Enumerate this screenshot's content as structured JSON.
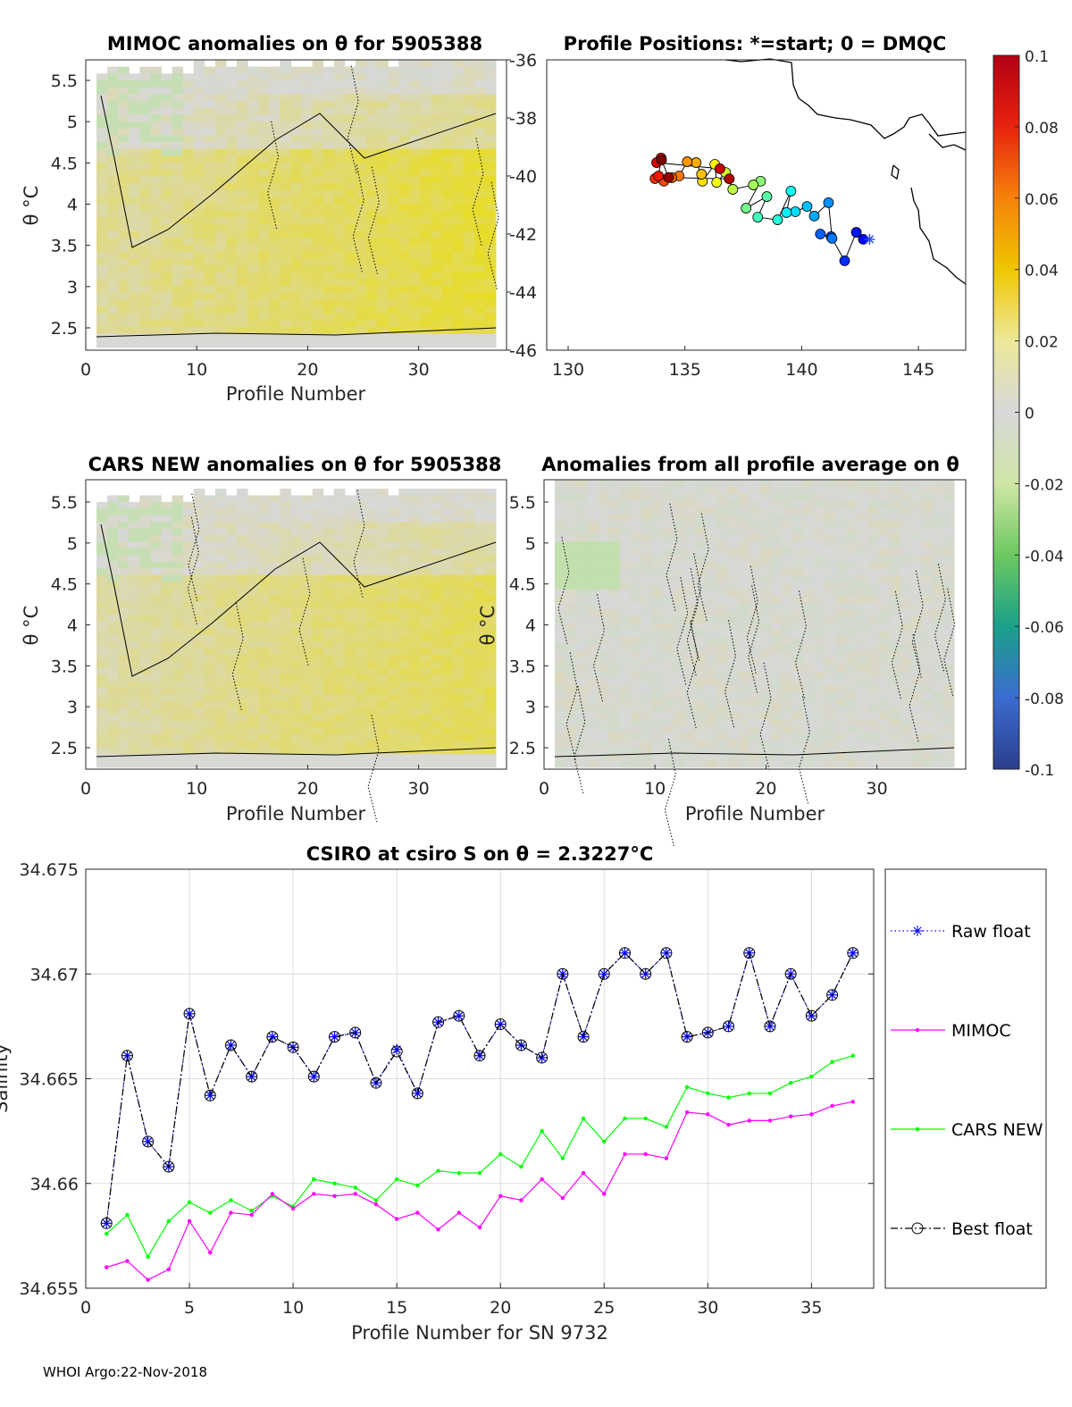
{
  "footer": "WHOI Argo:22-Nov-2018",
  "panels": {
    "mimoc": {
      "title": "MIMOC anomalies on θ  for 5905388",
      "xlabel": "Profile Number",
      "ylabel": "θ °C",
      "xticks": [
        "0",
        "10",
        "20",
        "30"
      ],
      "yticks": [
        "5.5",
        "5",
        "4.5",
        "4",
        "3.5",
        "3",
        "2.5"
      ]
    },
    "map": {
      "title": "Profile Positions: *=start; 0 = DMQC",
      "xticks": [
        "130",
        "135",
        "140",
        "145"
      ],
      "yticks": [
        "-36",
        "-38",
        "-40",
        "-42",
        "-44",
        "-46"
      ]
    },
    "cars": {
      "title": "CARS NEW anomalies on θ for 5905388",
      "xlabel": "Profile Number",
      "ylabel": "θ °C",
      "xticks": [
        "0",
        "10",
        "20",
        "30"
      ],
      "yticks": [
        "5.5",
        "5",
        "4.5",
        "4",
        "3.5",
        "3",
        "2.5"
      ]
    },
    "avg": {
      "title": "Anomalies from all profile average on θ",
      "xlabel": "Profile Number",
      "ylabel": "θ °C",
      "xticks": [
        "0",
        "10",
        "20",
        "30"
      ],
      "yticks": [
        "5.5",
        "5",
        "4.5",
        "4",
        "3.5",
        "3",
        "2.5"
      ]
    },
    "colorbar": {
      "ticks": [
        "0.1",
        "0.08",
        "0.06",
        "0.04",
        "0.02",
        "0",
        "-0.02",
        "-0.04",
        "-0.06",
        "-0.08",
        "-0.1"
      ]
    }
  },
  "chart_data": [
    {
      "type": "scatter",
      "title": "Profile Positions: *=start; 0 = DMQC",
      "xlim": [
        128.5,
        146.8
      ],
      "ylim": [
        -46,
        -36
      ],
      "lon": [
        142.64,
        142.34,
        141.84,
        141.26,
        140.8,
        141.3,
        141.15,
        140.54,
        140.23,
        139.73,
        139.35,
        139.54,
        138.97,
        138.12,
        138.51,
        137.62,
        138.24,
        137.93,
        137.05,
        136.74,
        136.36,
        136.28,
        135.75,
        135.71,
        135.48,
        135.1,
        134.75,
        134.44,
        134.1,
        133.72,
        133.87,
        133.98,
        133.79,
        136.5,
        136.9,
        134.3,
        134.0
      ],
      "lat": [
        -42.18,
        -41.94,
        -42.92,
        -42.09,
        -42.0,
        -42.15,
        -40.92,
        -41.38,
        -41.05,
        -41.23,
        -41.26,
        -40.52,
        -41.51,
        -41.42,
        -40.71,
        -41.11,
        -40.18,
        -40.31,
        -40.46,
        -39.88,
        -40.22,
        -39.6,
        -40.18,
        -39.94,
        -39.54,
        -39.51,
        -40.0,
        -40.06,
        -40.18,
        -40.09,
        -40.0,
        -39.38,
        -39.54,
        -39.75,
        -40.1,
        -40.05,
        -39.45
      ]
    },
    {
      "type": "line",
      "title": "CSIRO at csiro S on θ = 2.3227°C",
      "xlabel": "Profile Number for SN 9732",
      "ylabel": "Salinity",
      "xlim": [
        0,
        38
      ],
      "ylim": [
        34.655,
        34.675
      ],
      "xticks": [
        "0",
        "5",
        "10",
        "15",
        "20",
        "25",
        "30",
        "35"
      ],
      "yticks": [
        "34.675",
        "34.67",
        "34.665",
        "34.66",
        "34.655"
      ],
      "grid": true,
      "legend": "right-outside",
      "x": [
        1,
        2,
        3,
        4,
        5,
        6,
        7,
        8,
        9,
        10,
        11,
        12,
        13,
        14,
        15,
        16,
        17,
        18,
        19,
        20,
        21,
        22,
        23,
        24,
        25,
        26,
        27,
        28,
        29,
        30,
        31,
        32,
        33,
        34,
        35,
        36,
        37
      ],
      "series": [
        {
          "name": "Raw float",
          "color": "#0000ff",
          "values": [
            34.6581,
            34.6661,
            34.662,
            34.6608,
            34.6681,
            34.6642,
            34.6666,
            34.6651,
            34.667,
            34.6665,
            34.6651,
            34.667,
            34.6672,
            34.6648,
            34.6664,
            34.6643,
            34.6677,
            34.668,
            34.6661,
            34.6676,
            34.6666,
            34.666,
            34.67,
            34.667,
            34.67,
            34.671,
            34.67,
            34.671,
            34.667,
            34.6672,
            34.6675,
            34.671,
            34.6675,
            34.67,
            34.668,
            34.669,
            34.671
          ]
        },
        {
          "name": "MIMOC",
          "color": "#ff00ff",
          "values": [
            34.656,
            34.6563,
            34.6554,
            34.6559,
            34.6582,
            34.6567,
            34.6586,
            34.6585,
            34.6595,
            34.6588,
            34.6595,
            34.6594,
            34.6595,
            34.659,
            34.6583,
            34.6586,
            34.6578,
            34.6586,
            34.6579,
            34.6594,
            34.6592,
            34.6602,
            34.6593,
            34.6605,
            34.6595,
            34.6614,
            34.6614,
            34.6612,
            34.6634,
            34.6633,
            34.6628,
            34.663,
            34.663,
            34.6632,
            34.6633,
            34.6637,
            34.6639
          ]
        },
        {
          "name": "CARS NEW",
          "color": "#00ff00",
          "values": [
            34.6576,
            34.6585,
            34.6565,
            34.6582,
            34.6591,
            34.6586,
            34.6592,
            34.6587,
            34.6594,
            34.6589,
            34.6602,
            34.66,
            34.6598,
            34.6592,
            34.6602,
            34.6599,
            34.6606,
            34.6605,
            34.6605,
            34.6614,
            34.6608,
            34.6625,
            34.6612,
            34.6631,
            34.662,
            34.6631,
            34.6631,
            34.6627,
            34.6646,
            34.6643,
            34.6641,
            34.6643,
            34.6643,
            34.6648,
            34.6651,
            34.6658,
            34.6661
          ]
        },
        {
          "name": "Best float",
          "color": "#000000",
          "values": [
            34.6581,
            34.6661,
            34.662,
            34.6608,
            34.6681,
            34.6642,
            34.6666,
            34.6651,
            34.667,
            34.6665,
            34.6651,
            34.667,
            34.6672,
            34.6648,
            34.6663,
            34.6643,
            34.6677,
            34.668,
            34.6661,
            34.6676,
            34.6666,
            34.666,
            34.67,
            34.667,
            34.67,
            34.671,
            34.67,
            34.671,
            34.667,
            34.6672,
            34.6675,
            34.671,
            34.6675,
            34.67,
            34.668,
            34.669,
            34.671
          ]
        }
      ]
    }
  ]
}
